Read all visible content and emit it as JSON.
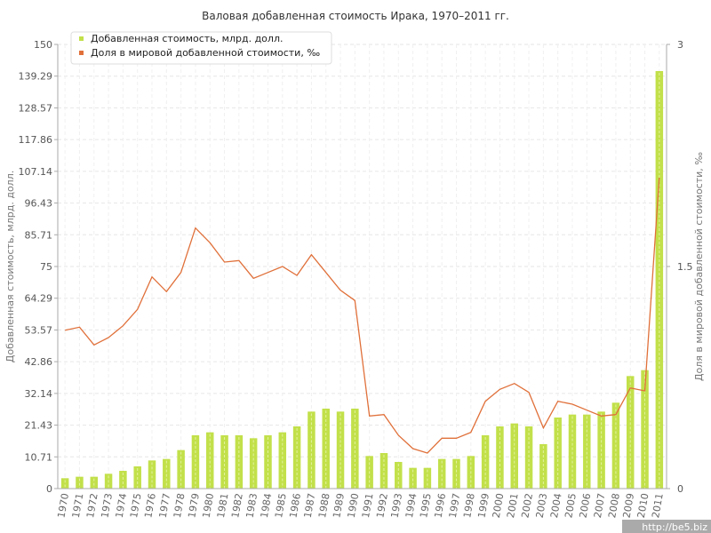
{
  "site_credit": "http://be5.biz",
  "colors": {
    "bar": "#c2e04a",
    "bar_stripe": "#e3f29e",
    "line": "#e0703a",
    "grid": "#e6e6e6",
    "axis": "#aaaaaa"
  },
  "chart_data": {
    "type": "bar",
    "title": "Валовая добавленная стоимость Ирака, 1970–2011 гг.",
    "ylabel": "Добавленная стоимость, млрд. долл.",
    "y2label": "Доля в мировой добавленной стоимости, ‰",
    "ylim": [
      0,
      150
    ],
    "y2lim": [
      0,
      3
    ],
    "yticks": [
      "0",
      "10.71",
      "21.43",
      "32.14",
      "42.86",
      "53.57",
      "64.29",
      "75",
      "85.71",
      "96.43",
      "107.14",
      "117.86",
      "128.57",
      "139.29",
      "150"
    ],
    "y2ticks": [
      "0",
      "1.5",
      "3"
    ],
    "legend_position": "top-left",
    "grid": true,
    "categories": [
      "1970",
      "1971",
      "1972",
      "1973",
      "1974",
      "1975",
      "1976",
      "1977",
      "1978",
      "1979",
      "1980",
      "1981",
      "1982",
      "1983",
      "1984",
      "1985",
      "1986",
      "1987",
      "1988",
      "1989",
      "1990",
      "1991",
      "1992",
      "1993",
      "1994",
      "1995",
      "1996",
      "1997",
      "1998",
      "1999",
      "2000",
      "2001",
      "2002",
      "2003",
      "2004",
      "2005",
      "2006",
      "2007",
      "2008",
      "2009",
      "2010",
      "2011"
    ],
    "series": [
      {
        "name": "Добавленная стоимость, млрд. долл.",
        "kind": "bar",
        "axis": "left",
        "values": [
          3.5,
          4,
          4,
          5,
          6,
          7.5,
          9.5,
          10,
          13,
          18,
          19,
          18,
          18,
          17,
          18,
          19,
          21,
          26,
          27,
          26,
          27,
          11,
          12,
          9,
          7,
          7,
          10,
          10,
          11,
          18,
          21,
          22,
          21,
          15,
          24,
          25,
          25,
          26,
          29,
          38,
          40,
          141
        ]
      },
      {
        "name": "Доля в мировой добавленной стоимости, ‰",
        "kind": "line",
        "axis": "right",
        "values": [
          1.07,
          1.09,
          0.97,
          1.02,
          1.1,
          1.21,
          1.43,
          1.33,
          1.46,
          1.76,
          1.66,
          1.53,
          1.54,
          1.42,
          1.46,
          1.5,
          1.44,
          1.58,
          1.46,
          1.34,
          1.27,
          0.49,
          0.5,
          0.36,
          0.27,
          0.24,
          0.34,
          0.34,
          0.38,
          0.59,
          0.67,
          0.71,
          0.65,
          0.41,
          0.59,
          0.57,
          0.53,
          0.49,
          0.5,
          0.68,
          0.66,
          2.1
        ]
      }
    ]
  }
}
